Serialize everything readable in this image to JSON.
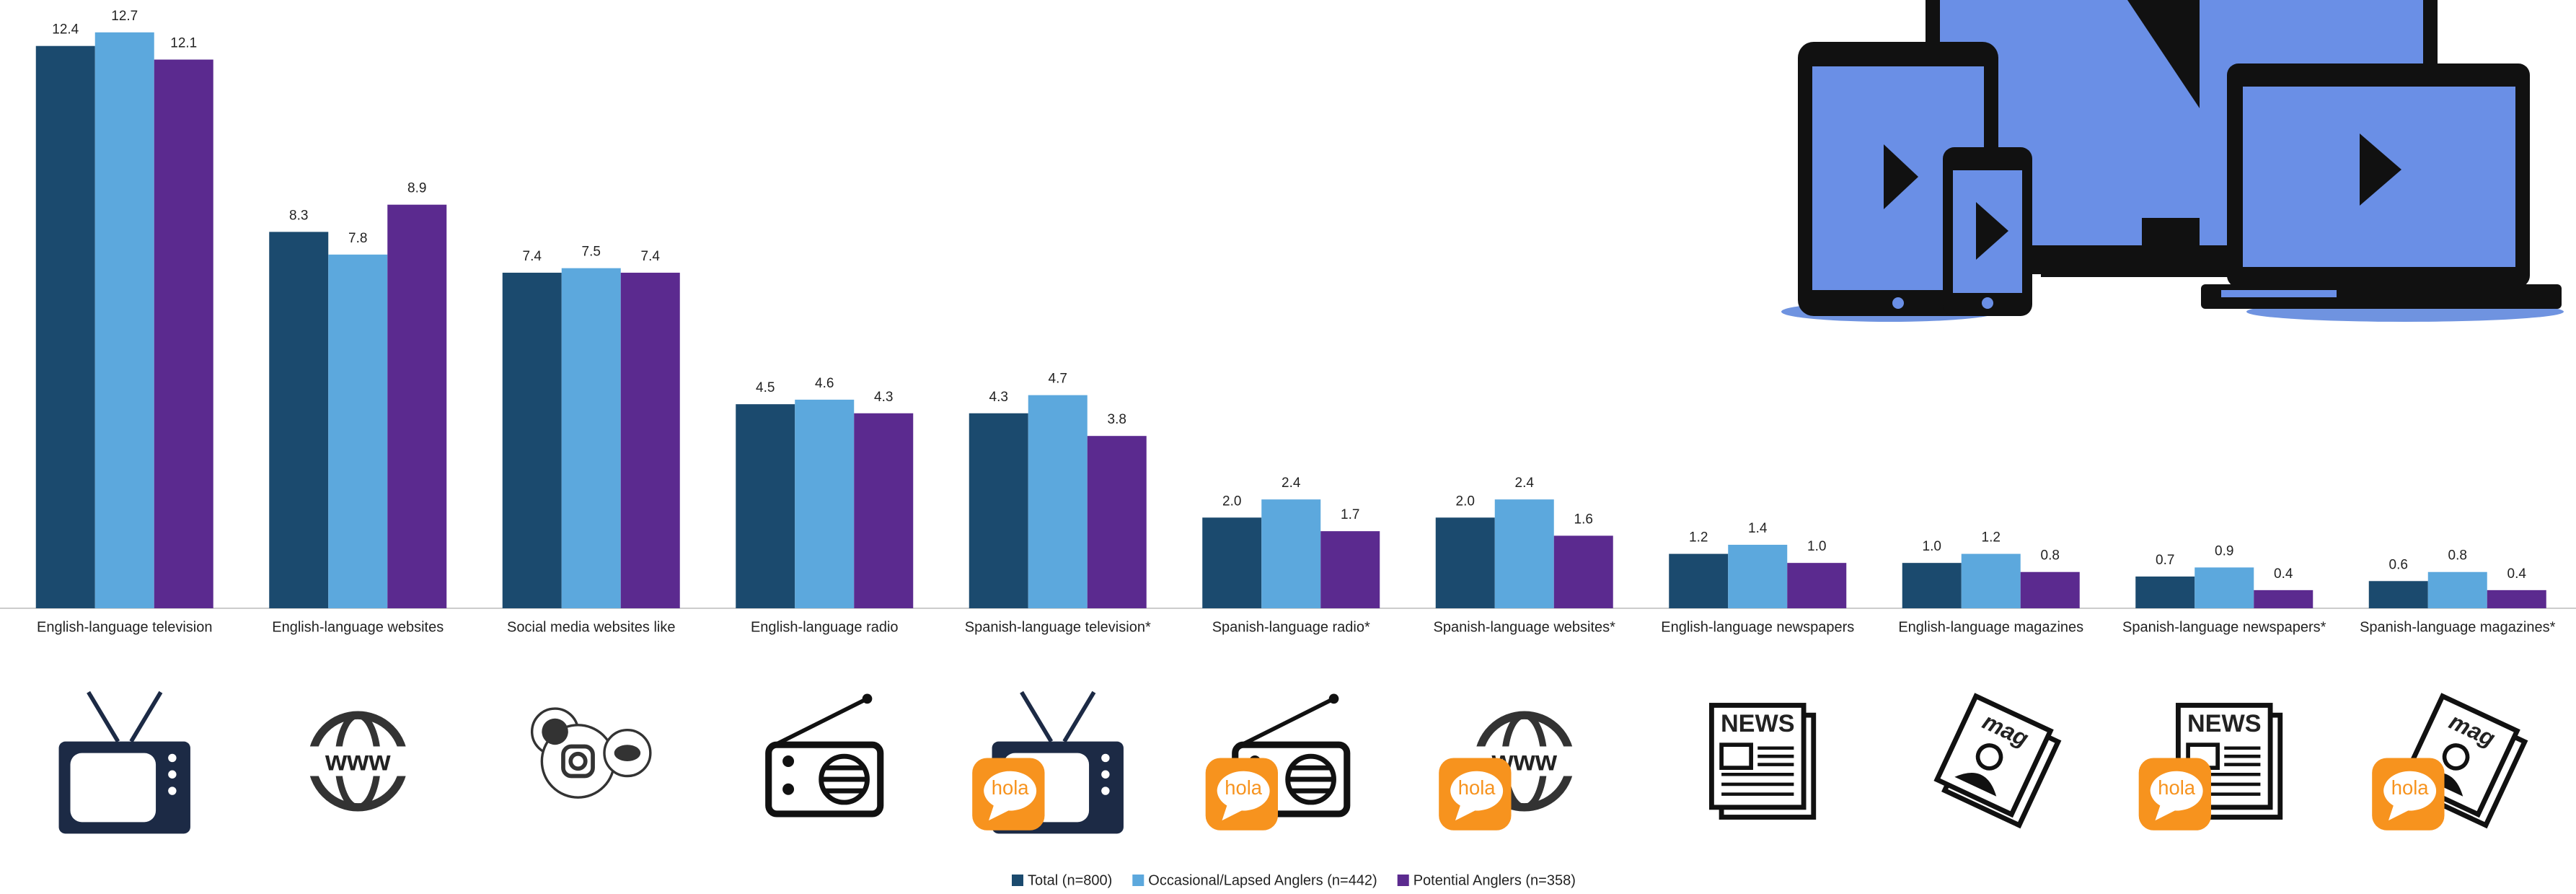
{
  "chart_data": {
    "type": "bar",
    "categories": [
      "English-language television",
      "English-language websites",
      "Social media websites like",
      "English-language radio",
      "Spanish-language television*",
      "Spanish-language radio*",
      "Spanish-language websites*",
      "English-language newspapers",
      "English-language magazines",
      "Spanish-language newspapers*",
      "Spanish-language magazines*"
    ],
    "series": [
      {
        "name": "Total (n=800)",
        "color": "#1b4a6e",
        "values": [
          12.4,
          8.3,
          7.4,
          4.5,
          4.3,
          2.0,
          2.0,
          1.2,
          1.0,
          0.7,
          0.6
        ],
        "value_labels": [
          "12.4",
          "8.3",
          "7.4",
          "4.5",
          "4.3",
          "2.0",
          "2.0",
          "1.2",
          "1.0",
          "0.7",
          "0.6"
        ]
      },
      {
        "name": "Occasional/Lapsed Anglers (n=442)",
        "color": "#5ca8dd",
        "values": [
          12.7,
          7.8,
          7.5,
          4.6,
          4.7,
          2.4,
          2.4,
          1.4,
          1.2,
          0.9,
          0.8
        ],
        "value_labels": [
          "12.7",
          "7.8",
          "7.5",
          "4.6",
          "4.7",
          "2.4",
          "2.4",
          "1.4",
          "1.2",
          "0.9",
          "0.8"
        ]
      },
      {
        "name": "Potential Anglers (n=358)",
        "color": "#5b2a8f",
        "values": [
          12.1,
          8.9,
          7.4,
          4.3,
          3.8,
          1.7,
          1.6,
          1.0,
          0.8,
          0.4,
          0.4
        ],
        "value_labels": [
          "12.1",
          "8.9",
          "7.4",
          "4.3",
          "3.8",
          "1.7",
          "1.6",
          "1.0",
          "0.8",
          "0.4",
          "0.4"
        ]
      }
    ],
    "ylim": [
      0,
      13
    ],
    "legend": "bottom"
  },
  "icon_labels": {
    "web": "www",
    "news": "NEWS",
    "magazine": "mag",
    "spanish": "hola"
  }
}
